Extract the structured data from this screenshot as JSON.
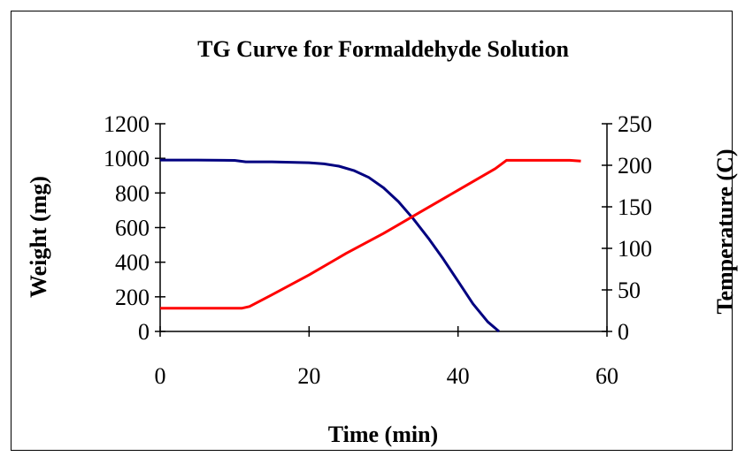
{
  "chart_data": {
    "type": "line",
    "title": "TG Curve for Formaldehyde Solution",
    "xlabel": "Time (min)",
    "ylabel": "Weight (mg)",
    "y2label": "Temperature (C)",
    "xlim": [
      0,
      60
    ],
    "ylim": [
      0,
      1200
    ],
    "y2lim": [
      0,
      250
    ],
    "xticks": [
      "0",
      "20",
      "40",
      "60"
    ],
    "xtick_values": [
      0,
      20,
      40,
      60
    ],
    "yticks": [
      "0",
      "200",
      "400",
      "600",
      "800",
      "1000",
      "1200"
    ],
    "ytick_values": [
      0,
      200,
      400,
      600,
      800,
      1000,
      1200
    ],
    "y2ticks": [
      "0",
      "50",
      "100",
      "150",
      "200",
      "250"
    ],
    "y2tick_values": [
      0,
      50,
      100,
      150,
      200,
      250
    ],
    "grid": false,
    "legend": "none",
    "series": [
      {
        "axis": "left",
        "color": "#000080",
        "x": [
          0,
          5,
          10,
          11.5,
          15,
          20,
          22,
          24,
          26,
          28,
          30,
          32,
          34,
          36,
          38,
          40,
          42,
          44,
          45.5
        ],
        "y": [
          990,
          990,
          988,
          980,
          980,
          975,
          968,
          955,
          930,
          890,
          830,
          750,
          650,
          540,
          420,
          290,
          160,
          55,
          0
        ]
      },
      {
        "axis": "right",
        "color": "#ff0000",
        "x": [
          0,
          5,
          11,
          12,
          15,
          20,
          25,
          30,
          35,
          40,
          45,
          46.5,
          50,
          55,
          56.5
        ],
        "y": [
          28,
          28,
          28,
          30,
          44,
          68,
          94,
          118,
          144,
          170,
          196,
          206,
          206,
          206,
          205
        ]
      }
    ]
  }
}
